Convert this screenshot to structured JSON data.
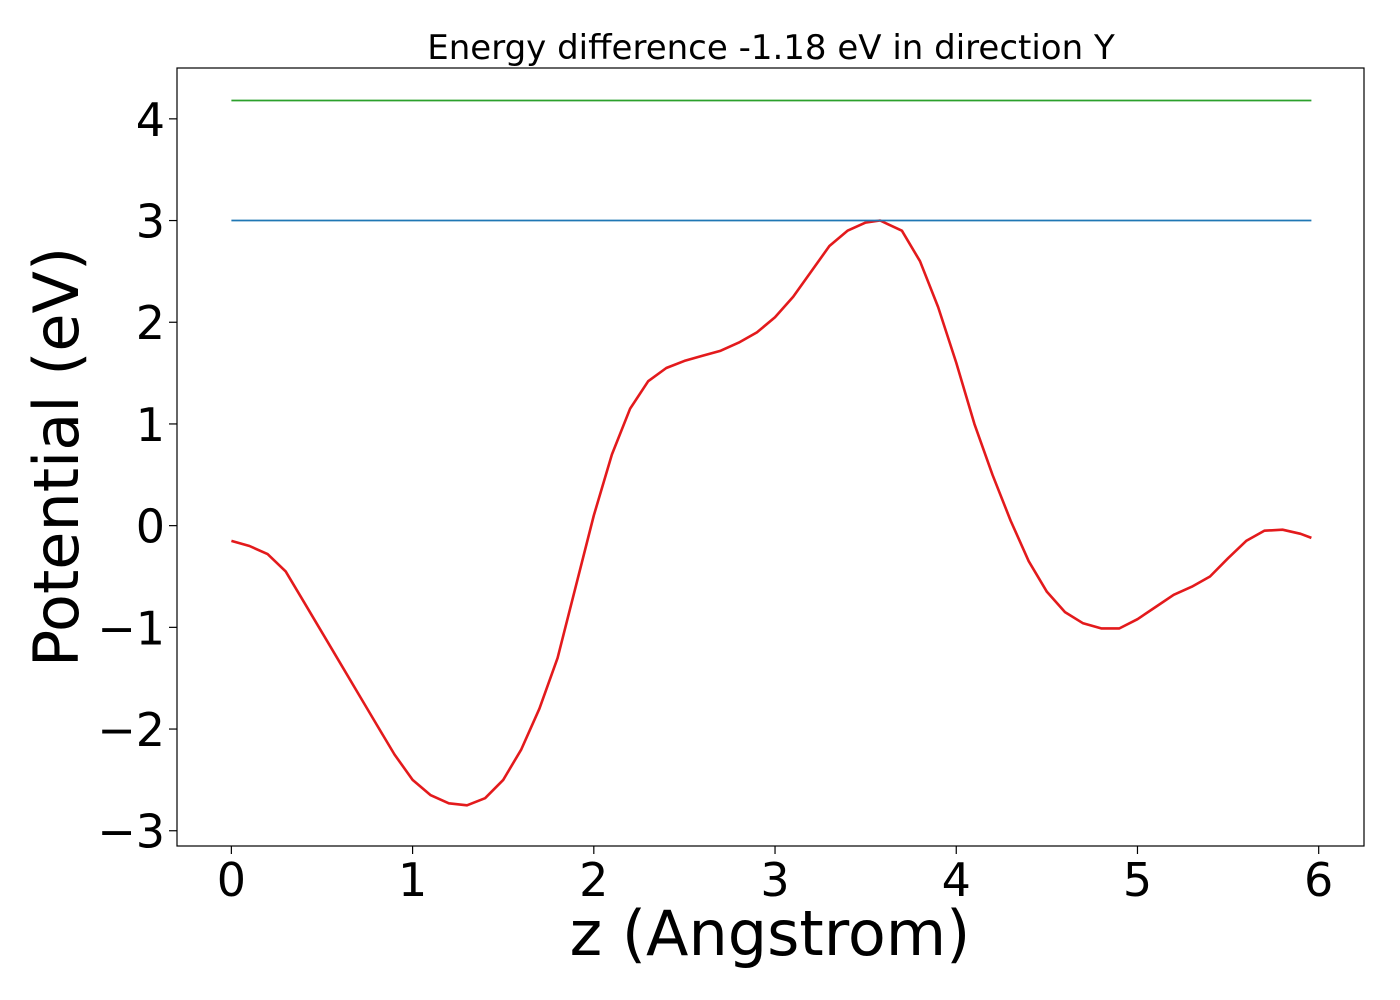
{
  "chart_data": {
    "type": "line",
    "title": "Energy difference -1.18 eV in direction Y",
    "xlabel": "z (Angstrom)",
    "ylabel": "Potential (eV)",
    "xlim": [
      -0.3,
      6.25
    ],
    "ylim": [
      -3.15,
      4.5
    ],
    "x_ticks": [
      0,
      1,
      2,
      3,
      4,
      5,
      6
    ],
    "x_tick_labels": [
      "0",
      "1",
      "2",
      "3",
      "4",
      "5",
      "6"
    ],
    "y_ticks": [
      -3,
      -2,
      -1,
      0,
      1,
      2,
      3,
      4
    ],
    "y_tick_labels": [
      "−3",
      "−2",
      "−1",
      "0",
      "1",
      "2",
      "3",
      "4"
    ],
    "grid": false,
    "series": [
      {
        "color": "#e31a1c",
        "x": [
          0,
          0.1,
          0.2,
          0.3,
          0.4,
          0.5,
          0.6,
          0.7,
          0.8,
          0.9,
          1.0,
          1.1,
          1.2,
          1.3,
          1.4,
          1.5,
          1.6,
          1.7,
          1.8,
          1.9,
          2.0,
          2.1,
          2.2,
          2.3,
          2.4,
          2.5,
          2.6,
          2.7,
          2.8,
          2.9,
          3.0,
          3.1,
          3.2,
          3.3,
          3.4,
          3.5,
          3.58,
          3.7,
          3.8,
          3.9,
          4.0,
          4.1,
          4.2,
          4.3,
          4.4,
          4.5,
          4.6,
          4.7,
          4.8,
          4.9,
          5.0,
          5.1,
          5.2,
          5.3,
          5.4,
          5.5,
          5.6,
          5.7,
          5.8,
          5.9,
          5.96
        ],
        "y": [
          -0.15,
          -0.2,
          -0.28,
          -0.45,
          -0.75,
          -1.05,
          -1.35,
          -1.65,
          -1.95,
          -2.25,
          -2.5,
          -2.65,
          -2.73,
          -2.75,
          -2.68,
          -2.5,
          -2.2,
          -1.8,
          -1.3,
          -0.6,
          0.1,
          0.7,
          1.15,
          1.42,
          1.55,
          1.62,
          1.67,
          1.72,
          1.8,
          1.9,
          2.05,
          2.25,
          2.5,
          2.75,
          2.9,
          2.98,
          3.0,
          2.9,
          2.6,
          2.15,
          1.6,
          1.0,
          0.5,
          0.05,
          -0.35,
          -0.65,
          -0.85,
          -0.96,
          -1.01,
          -1.01,
          -0.92,
          -0.8,
          -0.68,
          -0.6,
          -0.5,
          -0.32,
          -0.15,
          -0.05,
          -0.04,
          -0.08,
          -0.12
        ]
      },
      {
        "color": "#1f77b4",
        "x": [
          0,
          5.96
        ],
        "y": [
          3.0,
          3.0
        ]
      },
      {
        "color": "#2ca02c",
        "x": [
          0,
          5.96
        ],
        "y": [
          4.18,
          4.18
        ]
      }
    ]
  }
}
